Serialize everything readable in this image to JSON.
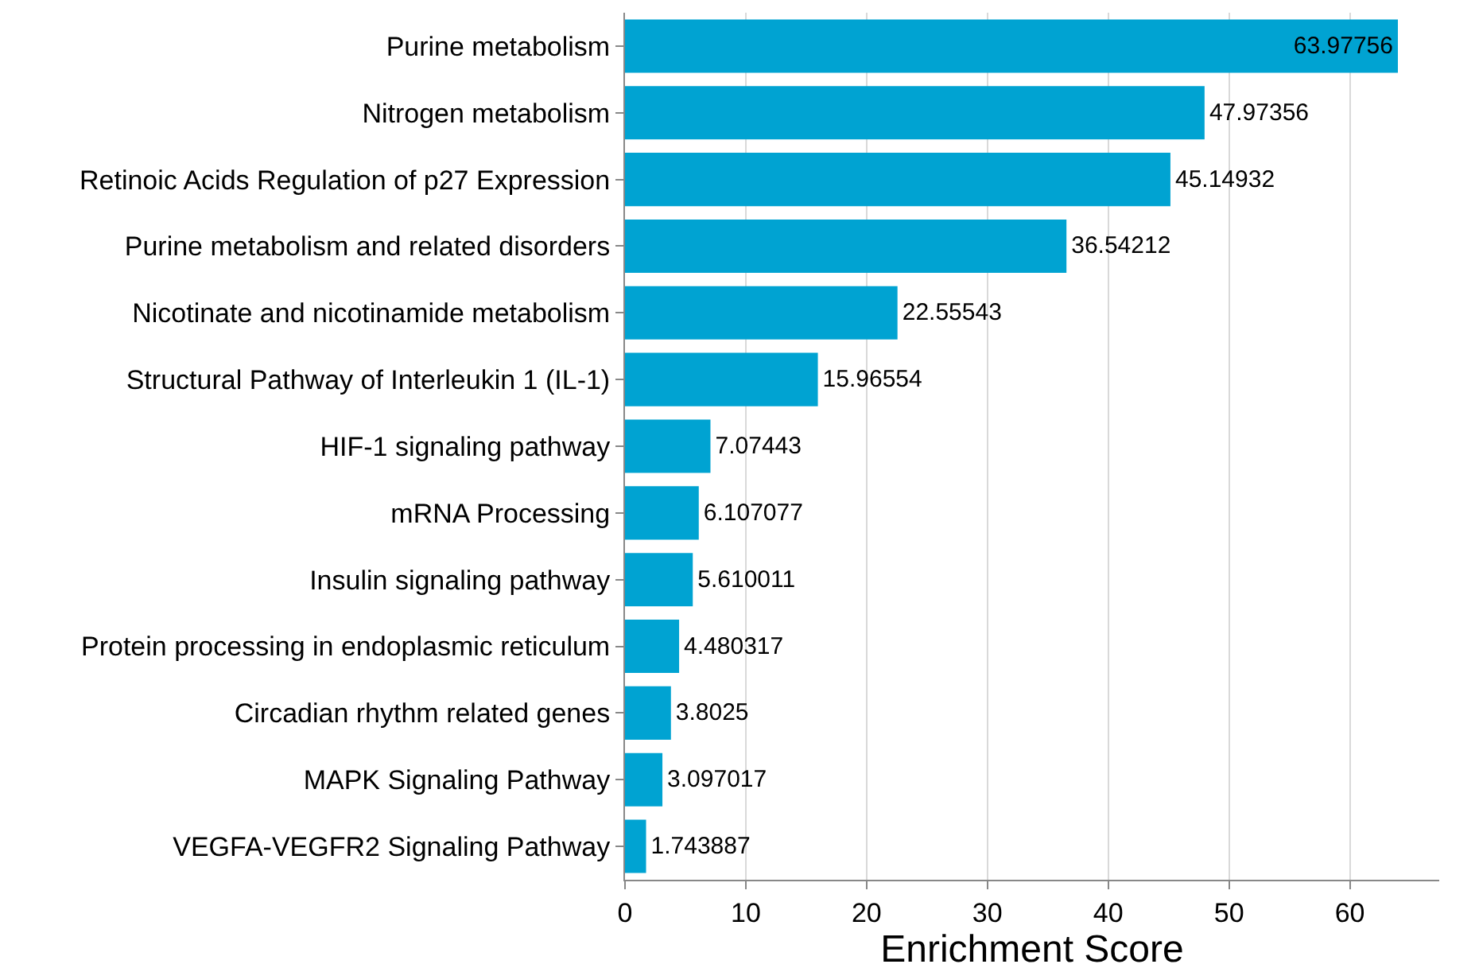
{
  "chart_data": {
    "type": "bar",
    "orientation": "horizontal",
    "xlabel": "Enrichment Score",
    "categories": [
      "Purine metabolism",
      "Nitrogen metabolism",
      "Retinoic Acids Regulation of p27 Expression",
      "Purine metabolism and related disorders",
      "Nicotinate and nicotinamide metabolism",
      "Structural Pathway of Interleukin 1 (IL-1)",
      "HIF-1 signaling pathway",
      "mRNA Processing",
      "Insulin signaling pathway",
      "Protein processing in endoplasmic reticulum",
      "Circadian rhythm related genes",
      "MAPK Signaling Pathway",
      "VEGFA-VEGFR2 Signaling Pathway"
    ],
    "values": [
      63.97756,
      47.97356,
      45.14932,
      36.54212,
      22.55543,
      15.96554,
      7.07443,
      6.107077,
      5.610011,
      4.480317,
      3.8025,
      3.097017,
      1.743887
    ],
    "color": "#00a3d2",
    "xlim": [
      0,
      67.4
    ],
    "xticks": [
      0,
      10,
      20,
      30,
      40,
      50,
      60
    ],
    "grid": "x",
    "data_labels": true
  }
}
